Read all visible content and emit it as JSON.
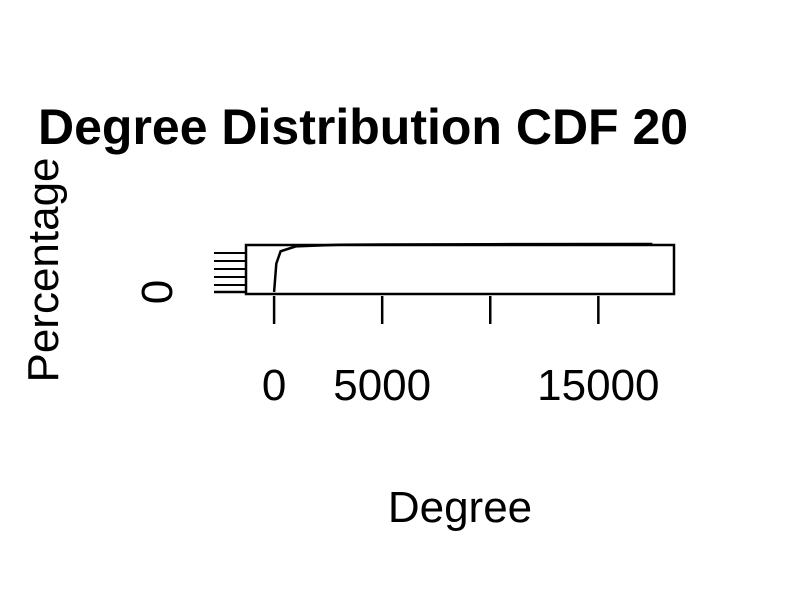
{
  "chart_data": {
    "type": "line",
    "title": "Degree Distribution CDF 20",
    "xlabel": "Degree",
    "ylabel": "Percentage",
    "xlim": [
      -1300,
      18500
    ],
    "ylim": [
      0,
      1
    ],
    "x_ticks": [
      0,
      5000,
      10000,
      15000
    ],
    "x_tick_labels": [
      "0",
      "5000",
      "",
      "15000"
    ],
    "y_ticks": [
      0
    ],
    "y_tick_labels": [
      "0"
    ],
    "grid": false,
    "series": [
      {
        "x": [
          0,
          100,
          300,
          1000,
          3000,
          10000,
          17500
        ],
        "y": [
          0.02,
          0.6,
          0.85,
          0.95,
          0.985,
          0.995,
          1.0
        ]
      }
    ]
  }
}
